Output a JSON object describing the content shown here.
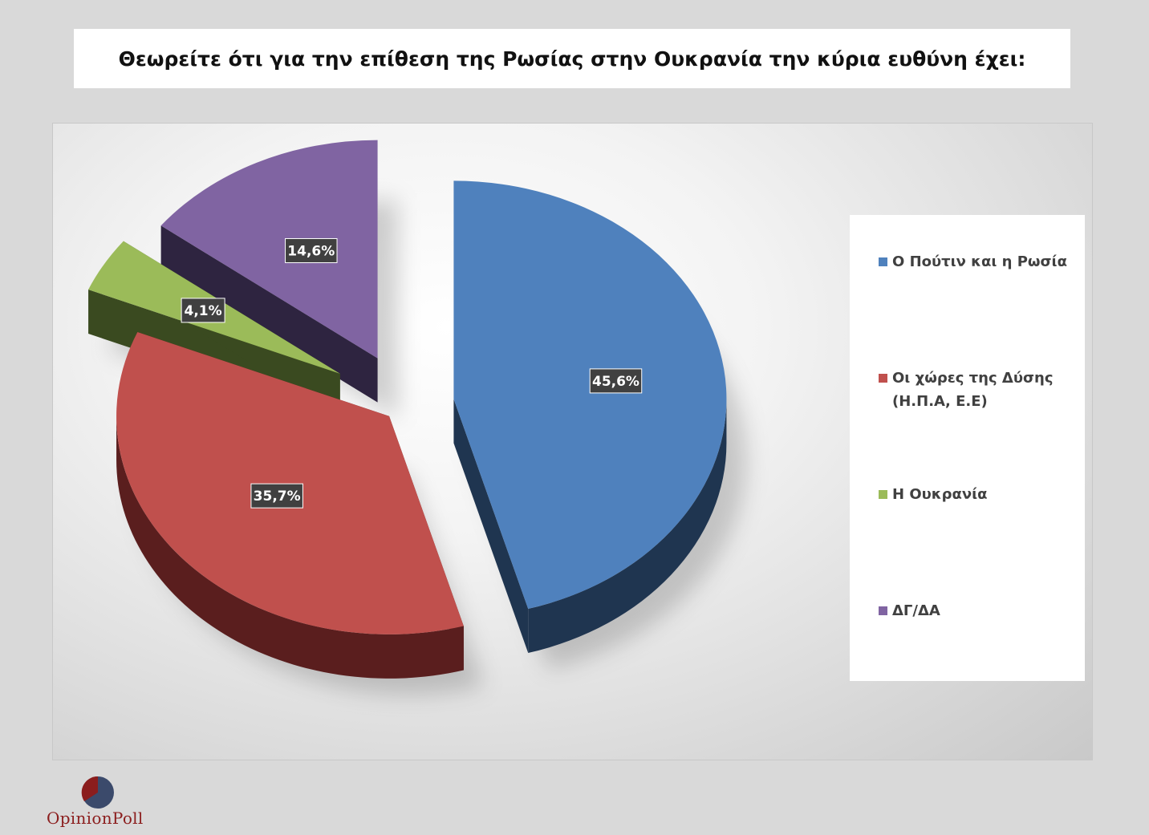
{
  "title": "Θεωρείτε ότι για την επίθεση της Ρωσίας στην Ουκρανία την κύρια ευθύνη έχει:",
  "chart_data": {
    "type": "pie",
    "style": "3d-exploded",
    "legend_position": "right",
    "slices": [
      {
        "label": "Ο Πούτιν και η Ρωσία",
        "value": 45.6,
        "value_label": "45,6%",
        "color": "#4f81bd",
        "side_color": "#1f3550"
      },
      {
        "label": "Οι χώρες της Δύσης (Η.Π.Α, Ε.Ε)",
        "value": 35.7,
        "value_label": "35,7%",
        "color": "#c0504d",
        "side_color": "#5a1e1e"
      },
      {
        "label": "Η Ουκρανία",
        "value": 4.1,
        "value_label": "4,1%",
        "color": "#9bbb59",
        "side_color": "#3a4a20"
      },
      {
        "label": "ΔΓ/ΔΑ",
        "value": 14.6,
        "value_label": "14,6%",
        "color": "#8064a2",
        "side_color": "#2e2440"
      }
    ]
  },
  "logo": {
    "text": "OpinionPoll",
    "colors": {
      "red": "#8b1d1d",
      "navy": "#3b4a6b"
    }
  }
}
